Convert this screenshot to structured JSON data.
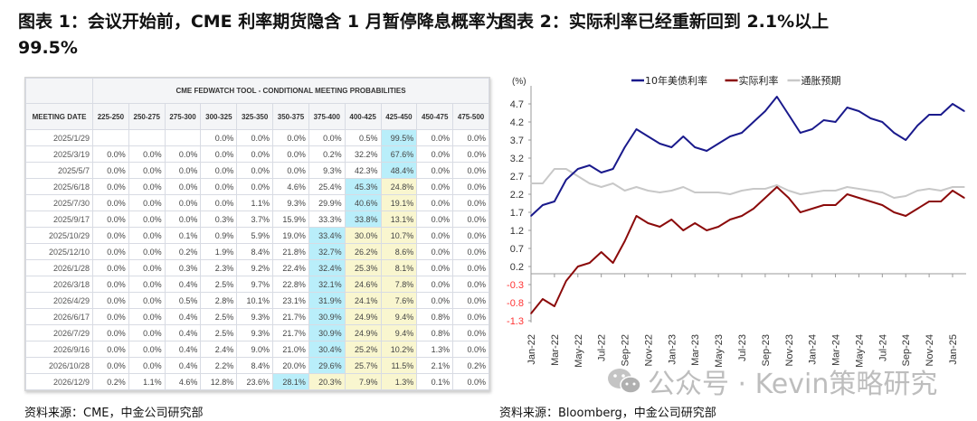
{
  "left_panel": {
    "title": "图表 1：会议开始前，CME 利率期货隐含 1 月暂停降息概率为 99.5%",
    "source": "资料来源：CME，中金公司研究部",
    "table": {
      "title": "CME FEDWATCH TOOL - CONDITIONAL MEETING PROBABILITIES",
      "columns": [
        "MEETING DATE",
        "225-250",
        "250-275",
        "275-300",
        "300-325",
        "325-350",
        "350-375",
        "375-400",
        "400-425",
        "425-450",
        "450-475",
        "475-500"
      ],
      "rows": [
        {
          "cells": [
            "2025/1/29",
            "",
            "",
            "",
            "0.0%",
            "0.0%",
            "0.0%",
            "0.0%",
            "0.5%",
            "99.5%",
            "0.0%",
            "0.0%"
          ],
          "max_col": 9,
          "yellow_cols": []
        },
        {
          "cells": [
            "2025/3/19",
            "0.0%",
            "0.0%",
            "0.0%",
            "0.0%",
            "0.0%",
            "0.0%",
            "0.2%",
            "32.2%",
            "67.6%",
            "0.0%",
            "0.0%"
          ],
          "max_col": 9,
          "yellow_cols": []
        },
        {
          "cells": [
            "2025/5/7",
            "0.0%",
            "0.0%",
            "0.0%",
            "0.0%",
            "0.0%",
            "0.0%",
            "9.3%",
            "42.3%",
            "48.4%",
            "0.0%",
            "0.0%"
          ],
          "max_col": 9,
          "yellow_cols": []
        },
        {
          "cells": [
            "2025/6/18",
            "0.0%",
            "0.0%",
            "0.0%",
            "0.0%",
            "0.0%",
            "4.6%",
            "25.4%",
            "45.3%",
            "24.8%",
            "0.0%",
            "0.0%"
          ],
          "max_col": 8,
          "yellow_cols": [
            9
          ]
        },
        {
          "cells": [
            "2025/7/30",
            "0.0%",
            "0.0%",
            "0.0%",
            "0.0%",
            "1.1%",
            "9.3%",
            "29.9%",
            "40.6%",
            "19.1%",
            "0.0%",
            "0.0%"
          ],
          "max_col": 8,
          "yellow_cols": [
            9
          ]
        },
        {
          "cells": [
            "2025/9/17",
            "0.0%",
            "0.0%",
            "0.0%",
            "0.3%",
            "3.7%",
            "15.9%",
            "33.3%",
            "33.8%",
            "13.1%",
            "0.0%",
            "0.0%"
          ],
          "max_col": 8,
          "yellow_cols": [
            9
          ]
        },
        {
          "cells": [
            "2025/10/29",
            "0.0%",
            "0.0%",
            "0.1%",
            "0.9%",
            "5.9%",
            "19.0%",
            "33.4%",
            "30.0%",
            "10.7%",
            "0.0%",
            "0.0%"
          ],
          "max_col": 7,
          "yellow_cols": [
            8,
            9
          ]
        },
        {
          "cells": [
            "2025/12/10",
            "0.0%",
            "0.0%",
            "0.2%",
            "1.9%",
            "8.4%",
            "21.8%",
            "32.7%",
            "26.2%",
            "8.6%",
            "0.0%",
            "0.0%"
          ],
          "max_col": 7,
          "yellow_cols": [
            8,
            9
          ]
        },
        {
          "cells": [
            "2026/1/28",
            "0.0%",
            "0.0%",
            "0.3%",
            "2.3%",
            "9.2%",
            "22.4%",
            "32.4%",
            "25.3%",
            "8.1%",
            "0.0%",
            "0.0%"
          ],
          "max_col": 7,
          "yellow_cols": [
            8,
            9
          ]
        },
        {
          "cells": [
            "2026/3/18",
            "0.0%",
            "0.0%",
            "0.4%",
            "2.5%",
            "9.7%",
            "22.8%",
            "32.1%",
            "24.6%",
            "7.8%",
            "0.0%",
            "0.0%"
          ],
          "max_col": 7,
          "yellow_cols": [
            8,
            9
          ]
        },
        {
          "cells": [
            "2026/4/29",
            "0.0%",
            "0.0%",
            "0.5%",
            "2.8%",
            "10.1%",
            "23.1%",
            "31.9%",
            "24.1%",
            "7.6%",
            "0.0%",
            "0.0%"
          ],
          "max_col": 7,
          "yellow_cols": [
            8,
            9
          ]
        },
        {
          "cells": [
            "2026/6/17",
            "0.0%",
            "0.0%",
            "0.4%",
            "2.5%",
            "9.3%",
            "21.7%",
            "30.9%",
            "24.9%",
            "9.4%",
            "0.8%",
            "0.0%"
          ],
          "max_col": 7,
          "yellow_cols": [
            8,
            9
          ]
        },
        {
          "cells": [
            "2026/7/29",
            "0.0%",
            "0.0%",
            "0.4%",
            "2.5%",
            "9.3%",
            "21.7%",
            "30.9%",
            "24.9%",
            "9.4%",
            "0.8%",
            "0.0%"
          ],
          "max_col": 7,
          "yellow_cols": [
            8,
            9
          ]
        },
        {
          "cells": [
            "2026/9/16",
            "0.0%",
            "0.0%",
            "0.4%",
            "2.4%",
            "9.0%",
            "21.0%",
            "30.4%",
            "25.2%",
            "10.2%",
            "1.3%",
            "0.0%"
          ],
          "max_col": 7,
          "yellow_cols": [
            8,
            9
          ]
        },
        {
          "cells": [
            "2026/10/28",
            "0.0%",
            "0.0%",
            "0.4%",
            "2.2%",
            "8.4%",
            "20.0%",
            "29.6%",
            "25.7%",
            "11.5%",
            "2.1%",
            "0.2%"
          ],
          "max_col": 7,
          "yellow_cols": [
            8,
            9
          ]
        },
        {
          "cells": [
            "2026/12/9",
            "0.2%",
            "1.1%",
            "4.6%",
            "12.8%",
            "23.6%",
            "28.1%",
            "20.3%",
            "7.9%",
            "1.3%",
            "0.1%",
            "0.0%"
          ],
          "max_col": 6,
          "yellow_cols": [
            7,
            8,
            9
          ]
        }
      ],
      "colors": {
        "max": "#b9eefa",
        "current_range": "#f9f6cf"
      }
    }
  },
  "right_panel": {
    "title": "图表 2：实际利率已经重新回到 2.1%以上",
    "source": "资料来源：Bloomberg，中金公司研究部"
  },
  "watermark": {
    "icon": "wechat-icon",
    "text": "公众号 · Kevin策略研究"
  },
  "chart_data": {
    "type": "line",
    "title": "",
    "ylabel": "(%)",
    "ylim": [
      -1.3,
      5.2
    ],
    "yticks": [
      -1.3,
      -0.8,
      -0.3,
      0.2,
      0.7,
      1.2,
      1.7,
      2.2,
      2.7,
      3.2,
      3.7,
      4.2,
      4.7
    ],
    "negative_tick_color": "#ff3333",
    "xtick_labels": [
      "Jan-22",
      "Mar-22",
      "May-22",
      "Jul-22",
      "Sep-22",
      "Nov-22",
      "Jan-23",
      "Mar-23",
      "May-23",
      "Jul-23",
      "Sep-23",
      "Nov-23",
      "Jan-24",
      "Mar-24",
      "May-24",
      "Jul-24",
      "Sep-24",
      "Nov-24",
      "Jan-25"
    ],
    "grid": false,
    "legend": "top-center",
    "x": [
      "Jan-22",
      "Feb-22",
      "Mar-22",
      "Apr-22",
      "May-22",
      "Jun-22",
      "Jul-22",
      "Aug-22",
      "Sep-22",
      "Oct-22",
      "Nov-22",
      "Dec-22",
      "Jan-23",
      "Feb-23",
      "Mar-23",
      "Apr-23",
      "May-23",
      "Jun-23",
      "Jul-23",
      "Aug-23",
      "Sep-23",
      "Oct-23",
      "Nov-23",
      "Dec-23",
      "Jan-24",
      "Feb-24",
      "Mar-24",
      "Apr-24",
      "May-24",
      "Jun-24",
      "Jul-24",
      "Aug-24",
      "Sep-24",
      "Oct-24",
      "Nov-24",
      "Dec-24",
      "Jan-25",
      "Feb-25"
    ],
    "series": [
      {
        "name": "10年美债利率",
        "color": "#1a1a8c",
        "values": [
          1.6,
          1.9,
          2.0,
          2.6,
          2.9,
          3.0,
          2.8,
          2.9,
          3.5,
          4.0,
          3.8,
          3.6,
          3.5,
          3.8,
          3.5,
          3.4,
          3.6,
          3.8,
          3.9,
          4.2,
          4.5,
          4.9,
          4.4,
          3.9,
          4.0,
          4.25,
          4.2,
          4.6,
          4.5,
          4.3,
          4.2,
          3.9,
          3.7,
          4.1,
          4.4,
          4.4,
          4.7,
          4.5
        ]
      },
      {
        "name": "实际利率",
        "color": "#8b0a0a",
        "values": [
          -1.1,
          -0.7,
          -0.9,
          -0.2,
          0.2,
          0.3,
          0.6,
          0.3,
          0.9,
          1.6,
          1.4,
          1.3,
          1.5,
          1.2,
          1.4,
          1.2,
          1.3,
          1.5,
          1.6,
          1.8,
          2.1,
          2.4,
          2.1,
          1.7,
          1.8,
          1.9,
          1.9,
          2.2,
          2.1,
          2.0,
          1.9,
          1.7,
          1.6,
          1.8,
          2.0,
          2.0,
          2.3,
          2.1
        ]
      },
      {
        "name": "通胀预期",
        "color": "#c8c8c8",
        "values": [
          2.5,
          2.5,
          2.9,
          2.9,
          2.7,
          2.5,
          2.4,
          2.5,
          2.3,
          2.4,
          2.3,
          2.25,
          2.3,
          2.4,
          2.25,
          2.25,
          2.25,
          2.2,
          2.3,
          2.35,
          2.35,
          2.45,
          2.3,
          2.2,
          2.25,
          2.3,
          2.3,
          2.4,
          2.35,
          2.3,
          2.25,
          2.1,
          2.15,
          2.3,
          2.35,
          2.3,
          2.4,
          2.4
        ]
      }
    ]
  }
}
